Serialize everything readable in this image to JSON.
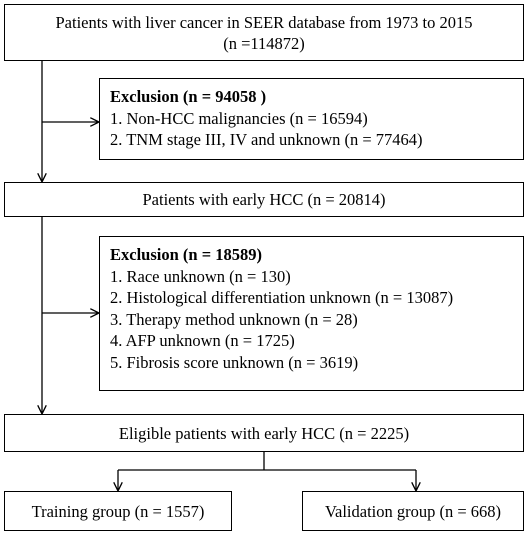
{
  "boxes": {
    "source": {
      "line1": "Patients with liver cancer in SEER database from 1973 to 2015",
      "line2": "(n =114872)"
    },
    "exclusion1": {
      "title": "Exclusion (n = 94058 )",
      "items": [
        "1.  Non-HCC malignancies (n = 16594)",
        "2.  TNM stage III, IV and unknown (n = 77464)"
      ]
    },
    "early": {
      "label": "Patients with early HCC (n = 20814)"
    },
    "exclusion2": {
      "title": "Exclusion (n = 18589)",
      "items": [
        "1.  Race unknown (n = 130)",
        "2.  Histological differentiation  unknown (n = 13087)",
        "3.  Therapy method unknown (n = 28)",
        "4.  AFP  unknown (n = 1725)",
        "5.  Fibrosis score unknown (n = 3619)"
      ]
    },
    "eligible": {
      "label": "Eligible patients with early HCC (n = 2225)"
    },
    "training": {
      "label": "Training group (n = 1557)"
    },
    "validation": {
      "label": "Validation group (n = 668)"
    }
  }
}
